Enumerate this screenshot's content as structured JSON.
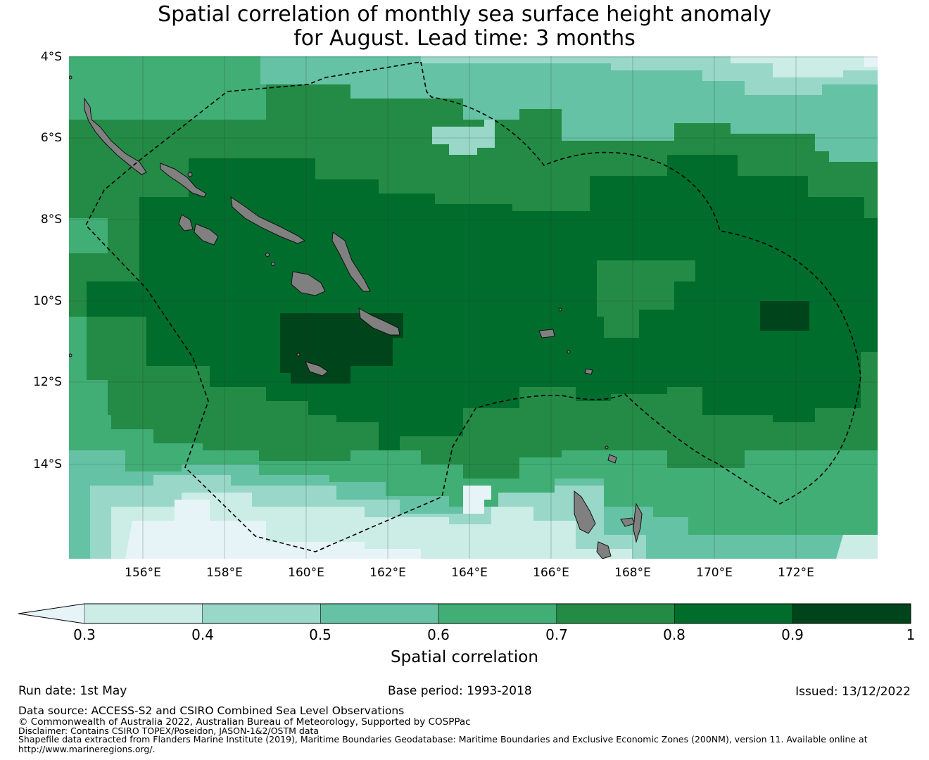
{
  "title": {
    "line1": "Spatial correlation of monthly sea surface height anomaly",
    "line2": "for August. Lead time: 3 months"
  },
  "axes": {
    "lat_labels": [
      "4°S",
      "6°S",
      "8°S",
      "10°S",
      "12°S",
      "14°S"
    ],
    "lon_labels": [
      "156°E",
      "158°E",
      "160°E",
      "162°E",
      "164°E",
      "166°E",
      "168°E",
      "170°E",
      "172°E"
    ],
    "lat_values": [
      -4,
      -6,
      -8,
      -10,
      -12,
      -14
    ],
    "lon_values": [
      156,
      158,
      160,
      162,
      164,
      166,
      168,
      170,
      172
    ],
    "lon_range": [
      154.2,
      174.0
    ],
    "lat_range": [
      -16.3,
      -4.0
    ]
  },
  "colorbar": {
    "label": "Spatial correlation",
    "ticks": [
      "0.3",
      "0.4",
      "0.5",
      "0.6",
      "0.7",
      "0.8",
      "0.9",
      "1"
    ],
    "bounds": [
      0.3,
      0.4,
      0.5,
      0.6,
      0.7,
      0.8,
      0.9,
      1.0
    ],
    "under_color": "#e6f4f8",
    "colors": [
      "#ccece6",
      "#99d8c9",
      "#66c2a4",
      "#41ae76",
      "#238b45",
      "#006d2c",
      "#00441b"
    ],
    "extend": "min"
  },
  "land_color": "#808080",
  "footer": {
    "run_date": "Run date: 1st May",
    "base_period": "Base period: 1993-2018",
    "issued": "Issued: 13/12/2022",
    "data_source": "Data source: ACCESS-S2 and CSIRO Combined Sea Level Observations",
    "copyright": "© Commonwealth of Australia 2022, Australian Bureau of Meteorology, Supported by COSPPac",
    "disclaimer": "Disclaimer: Contains CSIRO TOPEX/Poseidon, JASON-1&2/OSTM data",
    "shapefile_line1": "Shapefile data extracted from Flanders Marine Institute (2019), Maritime Boundaries Geodatabase: Maritime Boundaries and Exclusive Economic Zones (200NM), version 11. Available online at",
    "shapefile_line2": "http://www.marineregions.org/."
  }
}
